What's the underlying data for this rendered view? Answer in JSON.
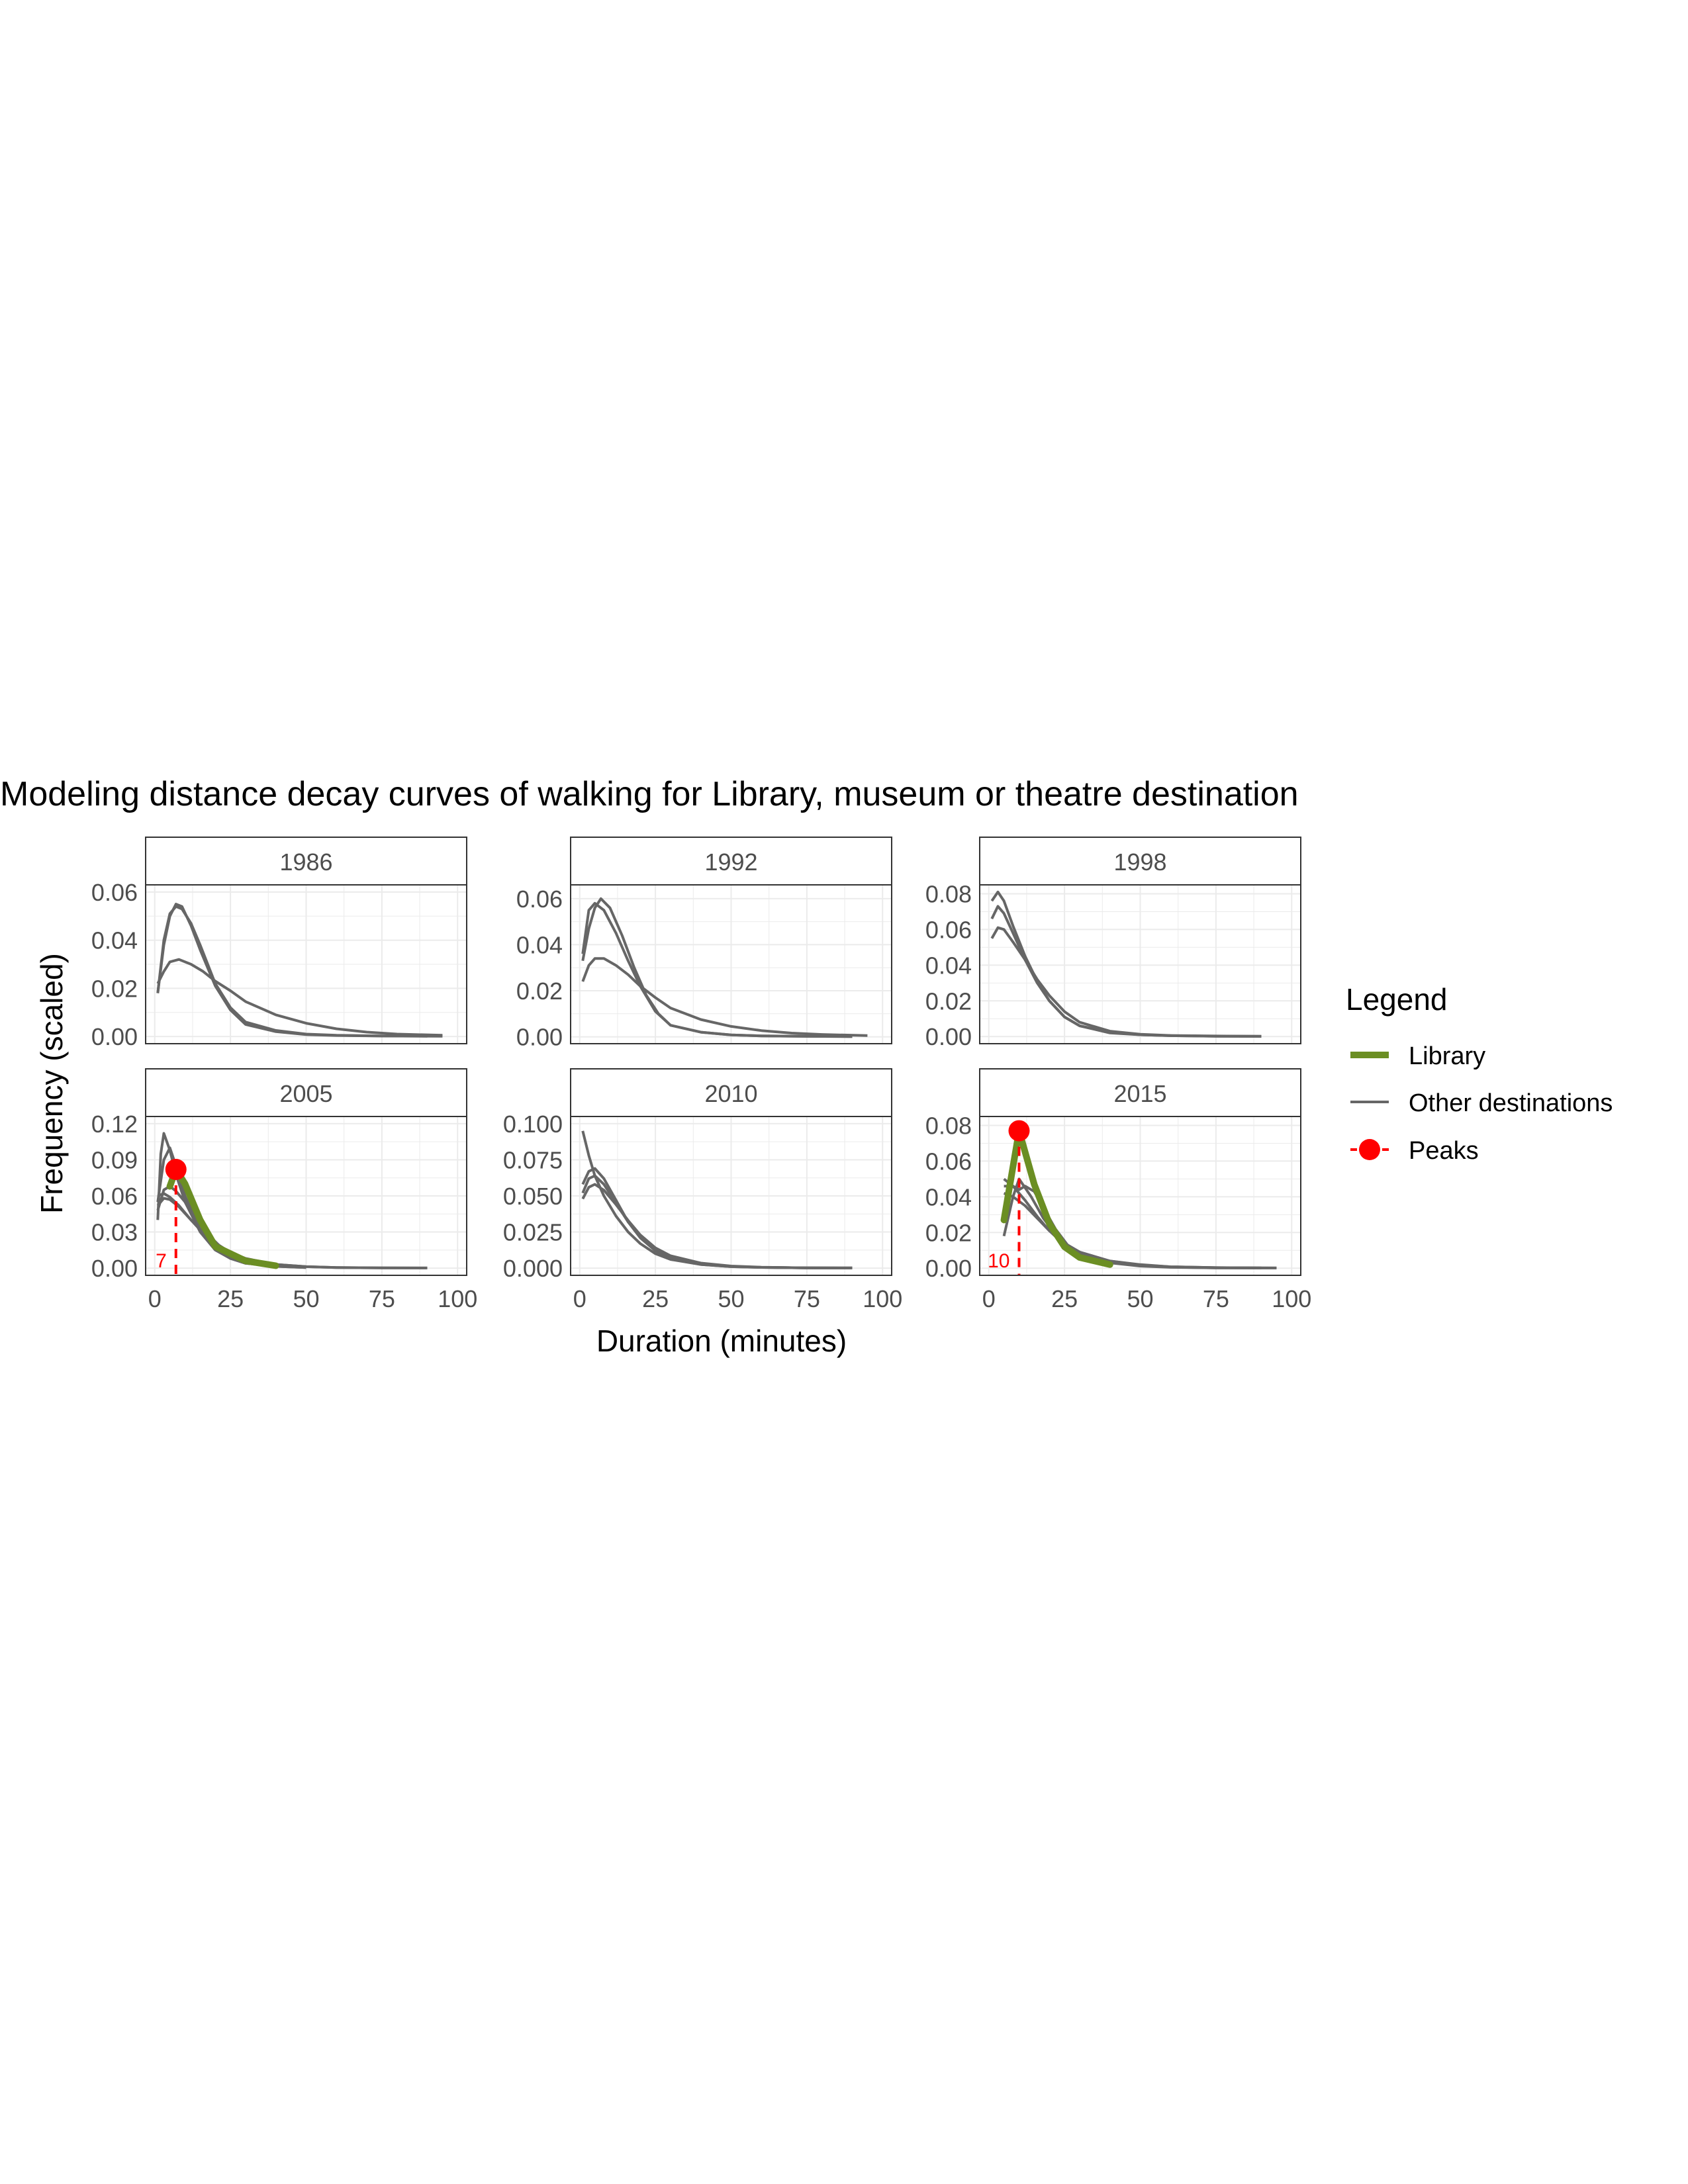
{
  "figure": {
    "title": "Modeling distance decay curves of walking for Library, museum or theatre destination",
    "xlabel": "Duration (minutes)",
    "ylabel": "Frequency (scaled)"
  },
  "legend": {
    "title": "Legend",
    "items": [
      {
        "label": "Library",
        "kind": "thick-line",
        "color": "#6B8E23"
      },
      {
        "label": "Other destinations",
        "kind": "line",
        "color": "#666666"
      },
      {
        "label": "Peaks",
        "kind": "point-dashed",
        "color": "#FF0000"
      }
    ]
  },
  "colors": {
    "library": "#6B8E23",
    "other": "#666666",
    "peak": "#FF0000",
    "grid": "#EBEBEB",
    "strip_text": "#4D4D4D",
    "tick_text": "#4D4D4D"
  },
  "chart_data": [
    {
      "type": "line",
      "panel": "1986",
      "xlim": [
        -3,
        103
      ],
      "ylim": [
        -0.003,
        0.063
      ],
      "x_ticks": [
        0,
        25,
        50,
        75,
        100
      ],
      "x_tick_labels": [
        "0",
        "25",
        "50",
        "75",
        "100"
      ],
      "y_ticks": [
        0,
        0.02,
        0.04,
        0.06
      ],
      "y_tick_labels": [
        "0.00",
        "0.02",
        "0.04",
        "0.06"
      ],
      "show_x_ticks": false,
      "grid": true,
      "series": [
        {
          "group": "other",
          "x": [
            1,
            3,
            5,
            7,
            9,
            12,
            15,
            20,
            25,
            30,
            40,
            50,
            60,
            75,
            95
          ],
          "y": [
            0.018,
            0.04,
            0.051,
            0.054,
            0.053,
            0.047,
            0.038,
            0.022,
            0.012,
            0.006,
            0.0025,
            0.001,
            0.0005,
            0.0002,
            0.0001
          ]
        },
        {
          "group": "other",
          "x": [
            1,
            3,
            5,
            7,
            9,
            12,
            15,
            20,
            25,
            30,
            40,
            50,
            60,
            75,
            90
          ],
          "y": [
            0.018,
            0.038,
            0.05,
            0.055,
            0.054,
            0.046,
            0.036,
            0.021,
            0.011,
            0.005,
            0.002,
            0.0008,
            0.0004,
            0.0002,
            0.0001
          ]
        },
        {
          "group": "other",
          "x": [
            1,
            3,
            5,
            8,
            12,
            16,
            20,
            25,
            30,
            40,
            50,
            60,
            70,
            80,
            95
          ],
          "y": [
            0.022,
            0.027,
            0.031,
            0.032,
            0.03,
            0.027,
            0.023,
            0.019,
            0.0145,
            0.009,
            0.0055,
            0.0032,
            0.0018,
            0.001,
            0.0005
          ]
        }
      ],
      "library": null,
      "peak": null
    },
    {
      "type": "line",
      "panel": "1992",
      "xlim": [
        -3,
        103
      ],
      "ylim": [
        -0.003,
        0.066
      ],
      "x_ticks": [
        0,
        25,
        50,
        75,
        100
      ],
      "x_tick_labels": [
        "0",
        "25",
        "50",
        "75",
        "100"
      ],
      "y_ticks": [
        0,
        0.02,
        0.04,
        0.06
      ],
      "y_tick_labels": [
        "0.00",
        "0.02",
        "0.04",
        "0.06"
      ],
      "show_x_ticks": false,
      "grid": true,
      "series": [
        {
          "group": "other",
          "x": [
            1,
            3,
            5,
            8,
            12,
            16,
            20,
            25,
            30,
            40,
            50,
            60,
            75,
            90
          ],
          "y": [
            0.036,
            0.055,
            0.058,
            0.055,
            0.045,
            0.033,
            0.022,
            0.011,
            0.005,
            0.002,
            0.0008,
            0.0004,
            0.0002,
            0.0001
          ]
        },
        {
          "group": "other",
          "x": [
            1,
            3,
            5,
            7,
            10,
            14,
            18,
            22,
            26,
            30,
            40,
            50,
            60,
            75,
            90
          ],
          "y": [
            0.033,
            0.047,
            0.056,
            0.06,
            0.056,
            0.044,
            0.03,
            0.018,
            0.01,
            0.005,
            0.002,
            0.0008,
            0.0004,
            0.0002,
            0.0001
          ]
        },
        {
          "group": "other",
          "x": [
            1,
            3,
            5,
            8,
            12,
            16,
            20,
            25,
            30,
            40,
            50,
            60,
            70,
            80,
            95
          ],
          "y": [
            0.024,
            0.031,
            0.034,
            0.034,
            0.031,
            0.027,
            0.022,
            0.017,
            0.0125,
            0.0075,
            0.0045,
            0.0027,
            0.0016,
            0.001,
            0.0005
          ]
        }
      ],
      "library": null,
      "peak": null
    },
    {
      "type": "line",
      "panel": "1998",
      "xlim": [
        -3,
        103
      ],
      "ylim": [
        -0.004,
        0.085
      ],
      "x_ticks": [
        0,
        25,
        50,
        75,
        100
      ],
      "x_tick_labels": [
        "0",
        "25",
        "50",
        "75",
        "100"
      ],
      "y_ticks": [
        0,
        0.02,
        0.04,
        0.06,
        0.08
      ],
      "y_tick_labels": [
        "0.00",
        "0.02",
        "0.04",
        "0.06",
        "0.08"
      ],
      "show_x_ticks": false,
      "grid": true,
      "series": [
        {
          "group": "other",
          "x": [
            1,
            3,
            5,
            8,
            12,
            16,
            20,
            25,
            30,
            40,
            50,
            60,
            75,
            90
          ],
          "y": [
            0.076,
            0.081,
            0.076,
            0.062,
            0.045,
            0.031,
            0.02,
            0.011,
            0.006,
            0.002,
            0.001,
            0.0005,
            0.0002,
            0.0001
          ]
        },
        {
          "group": "other",
          "x": [
            1,
            3,
            5,
            8,
            12,
            16,
            20,
            25,
            30,
            40,
            50,
            60,
            75,
            90
          ],
          "y": [
            0.066,
            0.073,
            0.069,
            0.058,
            0.043,
            0.03,
            0.02,
            0.011,
            0.006,
            0.0025,
            0.001,
            0.0005,
            0.0002,
            0.0001
          ]
        },
        {
          "group": "other",
          "x": [
            1,
            3,
            5,
            8,
            12,
            16,
            20,
            25,
            30,
            40,
            50,
            60,
            75,
            90
          ],
          "y": [
            0.055,
            0.061,
            0.06,
            0.053,
            0.043,
            0.032,
            0.023,
            0.014,
            0.008,
            0.003,
            0.0013,
            0.0006,
            0.0003,
            0.0001
          ]
        }
      ],
      "library": null,
      "peak": null
    },
    {
      "type": "line",
      "panel": "2005",
      "xlim": [
        -3,
        103
      ],
      "ylim": [
        -0.006,
        0.126
      ],
      "x_ticks": [
        0,
        25,
        50,
        75,
        100
      ],
      "x_tick_labels": [
        "0",
        "25",
        "50",
        "75",
        "100"
      ],
      "y_ticks": [
        0,
        0.03,
        0.06,
        0.09,
        0.12
      ],
      "y_tick_labels": [
        "0.00",
        "0.03",
        "0.06",
        "0.09",
        "0.12"
      ],
      "show_x_ticks": true,
      "grid": true,
      "series": [
        {
          "group": "other",
          "x": [
            1,
            2,
            3,
            5,
            7,
            10,
            15,
            20,
            25,
            30,
            40,
            50
          ],
          "y": [
            0.04,
            0.095,
            0.112,
            0.098,
            0.078,
            0.055,
            0.03,
            0.015,
            0.008,
            0.004,
            0.0015,
            0.0005
          ]
        },
        {
          "group": "other",
          "x": [
            1,
            3,
            5,
            7,
            10,
            15,
            20,
            25,
            30,
            40,
            50
          ],
          "y": [
            0.055,
            0.09,
            0.1,
            0.085,
            0.06,
            0.032,
            0.016,
            0.008,
            0.004,
            0.0015,
            0.0005
          ]
        },
        {
          "group": "other",
          "x": [
            1,
            3,
            5,
            8,
            12,
            16,
            20,
            25,
            30,
            40,
            50,
            60,
            75,
            90
          ],
          "y": [
            0.06,
            0.062,
            0.059,
            0.052,
            0.04,
            0.029,
            0.02,
            0.012,
            0.007,
            0.003,
            0.0012,
            0.0005,
            0.0002,
            0.0001
          ]
        },
        {
          "group": "other",
          "x": [
            1,
            3,
            5,
            8,
            12,
            16,
            20,
            25,
            30,
            40,
            50,
            60,
            75,
            90
          ],
          "y": [
            0.052,
            0.058,
            0.057,
            0.051,
            0.04,
            0.03,
            0.021,
            0.013,
            0.008,
            0.003,
            0.0012,
            0.0005,
            0.0002,
            0.0001
          ]
        },
        {
          "group": "other",
          "x": [
            1,
            3,
            5,
            7,
            10,
            14,
            18,
            22,
            26,
            30,
            40,
            50
          ],
          "y": [
            0.048,
            0.065,
            0.068,
            0.064,
            0.055,
            0.04,
            0.027,
            0.017,
            0.011,
            0.007,
            0.0025,
            0.001
          ]
        }
      ],
      "library": {
        "x": [
          5,
          7,
          10,
          15,
          20,
          30,
          40
        ],
        "y": [
          0.068,
          0.082,
          0.07,
          0.04,
          0.018,
          0.006,
          0.002
        ]
      },
      "peak": {
        "x": 7,
        "y": 0.082,
        "label": "7"
      }
    },
    {
      "type": "line",
      "panel": "2010",
      "xlim": [
        -3,
        103
      ],
      "ylim": [
        -0.005,
        0.105
      ],
      "x_ticks": [
        0,
        25,
        50,
        75,
        100
      ],
      "x_tick_labels": [
        "0",
        "25",
        "50",
        "75",
        "100"
      ],
      "y_ticks": [
        0,
        0.025,
        0.05,
        0.075,
        0.1
      ],
      "y_tick_labels": [
        "0.000",
        "0.025",
        "0.050",
        "0.075",
        "0.100"
      ],
      "show_x_ticks": true,
      "grid": true,
      "series": [
        {
          "group": "other",
          "x": [
            1,
            3,
            5,
            8,
            12,
            16,
            20,
            25,
            30,
            40,
            50,
            60,
            75,
            90
          ],
          "y": [
            0.095,
            0.078,
            0.064,
            0.05,
            0.036,
            0.025,
            0.017,
            0.01,
            0.006,
            0.0025,
            0.001,
            0.0005,
            0.0002,
            0.0001
          ]
        },
        {
          "group": "other",
          "x": [
            1,
            3,
            5,
            8,
            12,
            16,
            20,
            25,
            30,
            40,
            50,
            60,
            75,
            90
          ],
          "y": [
            0.058,
            0.067,
            0.069,
            0.062,
            0.047,
            0.032,
            0.021,
            0.012,
            0.007,
            0.0025,
            0.001,
            0.0005,
            0.0002,
            0.0001
          ]
        },
        {
          "group": "other",
          "x": [
            1,
            3,
            5,
            8,
            12,
            16,
            20,
            25,
            30,
            40,
            50,
            60,
            75,
            90
          ],
          "y": [
            0.052,
            0.062,
            0.064,
            0.058,
            0.045,
            0.032,
            0.022,
            0.013,
            0.0075,
            0.003,
            0.0012,
            0.0005,
            0.0002,
            0.0001
          ]
        },
        {
          "group": "other",
          "x": [
            1,
            3,
            5,
            8,
            12,
            16,
            20,
            25,
            30,
            40,
            50,
            60,
            75,
            90
          ],
          "y": [
            0.048,
            0.056,
            0.058,
            0.054,
            0.044,
            0.033,
            0.023,
            0.014,
            0.0085,
            0.0035,
            0.0014,
            0.0006,
            0.0002,
            0.0001
          ]
        }
      ],
      "library": null,
      "peak": null
    },
    {
      "type": "line",
      "panel": "2015",
      "xlim": [
        -3,
        103
      ],
      "ylim": [
        -0.004,
        0.085
      ],
      "x_ticks": [
        0,
        25,
        50,
        75,
        100
      ],
      "x_tick_labels": [
        "0",
        "25",
        "50",
        "75",
        "100"
      ],
      "y_ticks": [
        0,
        0.02,
        0.04,
        0.06,
        0.08
      ],
      "y_tick_labels": [
        "0.00",
        "0.02",
        "0.04",
        "0.06",
        "0.08"
      ],
      "show_x_ticks": true,
      "grid": true,
      "series": [
        {
          "group": "other",
          "x": [
            5,
            8,
            10,
            14,
            18,
            22,
            26,
            30,
            40,
            50,
            60,
            75,
            90
          ],
          "y": [
            0.018,
            0.04,
            0.05,
            0.04,
            0.028,
            0.019,
            0.013,
            0.009,
            0.004,
            0.0018,
            0.0008,
            0.0003,
            0.0001
          ]
        },
        {
          "group": "other",
          "x": [
            5,
            8,
            10,
            12,
            15,
            18,
            22,
            26,
            30,
            40,
            50,
            60,
            75,
            90
          ],
          "y": [
            0.046,
            0.046,
            0.044,
            0.046,
            0.043,
            0.034,
            0.022,
            0.013,
            0.008,
            0.003,
            0.0012,
            0.0005,
            0.0002,
            0.0001
          ]
        },
        {
          "group": "other",
          "x": [
            5,
            8,
            12,
            16,
            20,
            25,
            30,
            40,
            50,
            60,
            75,
            95
          ],
          "y": [
            0.042,
            0.04,
            0.035,
            0.028,
            0.021,
            0.014,
            0.009,
            0.004,
            0.002,
            0.0008,
            0.0003,
            0.0001
          ]
        },
        {
          "group": "other",
          "x": [
            5,
            8,
            12,
            16,
            20,
            25,
            30,
            40,
            50,
            60,
            75,
            95
          ],
          "y": [
            0.05,
            0.046,
            0.038,
            0.029,
            0.021,
            0.013,
            0.008,
            0.0035,
            0.0015,
            0.0006,
            0.0002,
            0.0001
          ]
        }
      ],
      "library": {
        "x": [
          5,
          10,
          15,
          20,
          25,
          30,
          40
        ],
        "y": [
          0.027,
          0.077,
          0.047,
          0.025,
          0.012,
          0.006,
          0.002
        ]
      },
      "peak": {
        "x": 10,
        "y": 0.077,
        "label": "10"
      }
    }
  ]
}
